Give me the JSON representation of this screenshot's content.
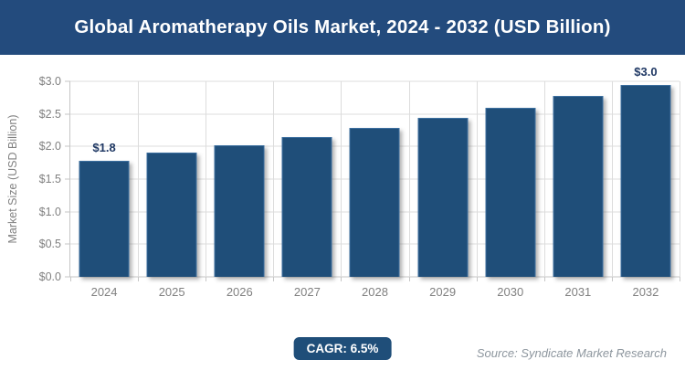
{
  "banner": {
    "title": "Global Aromatherapy Oils Market, 2024 - 2032 (USD Billion)"
  },
  "footer": {
    "cagr_label": "CAGR: 6.5%",
    "source": "Source: Syndicate Market Research"
  },
  "chart_data": {
    "type": "bar",
    "title": "Global Aromatherapy Oils Market, 2024 - 2032 (USD Billion)",
    "categories": [
      "2024",
      "2025",
      "2026",
      "2027",
      "2028",
      "2029",
      "2030",
      "2031",
      "2032"
    ],
    "values": [
      1.78,
      1.9,
      2.02,
      2.15,
      2.29,
      2.44,
      2.6,
      2.77,
      2.95
    ],
    "bar_labels": [
      "$1.8",
      "",
      "",
      "",
      "",
      "",
      "",
      "",
      "$3.0"
    ],
    "xlabel": "",
    "ylabel": "Market Size (USD Billion)",
    "ylim": [
      0,
      3
    ],
    "ytick_values": [
      0,
      0.5,
      1,
      1.5,
      2,
      2.5,
      3
    ],
    "ytick_labels": [
      "$0.0",
      "$0.5",
      "$1.0",
      "$1.5",
      "$2.0",
      "$2.5",
      "$3.0"
    ],
    "grid": "horizontal and vertical gridlines on",
    "legend": "none",
    "cagr": "6.5%"
  },
  "colors": {
    "banner_bg": "#234b7d",
    "banner_text": "#ffffff",
    "bar_fill": "#1f4e79",
    "bar_border": "#3c6f9f",
    "badge_bg": "#1f4e79",
    "badge_text": "#ffffff",
    "gridline": "#dcdcdc",
    "axis_line": "#c6c6c6",
    "axis_text": "#808080",
    "data_label": "#1f3864",
    "source_text": "#8d969e",
    "background": "#ffffff"
  }
}
